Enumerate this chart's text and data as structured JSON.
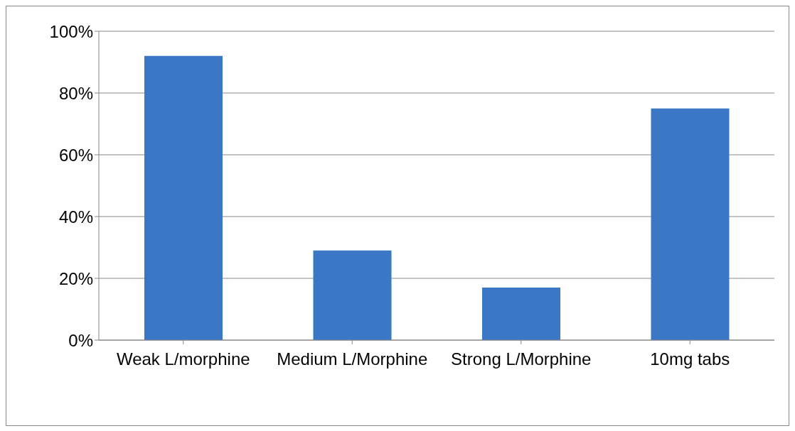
{
  "chart_data": {
    "type": "bar",
    "categories": [
      "Weak L/morphine",
      "Medium L/Morphine",
      "Strong L/Morphine",
      "10mg tabs"
    ],
    "values": [
      92,
      29,
      17,
      75
    ],
    "color": "#3a78c6",
    "ylim": [
      0,
      100
    ],
    "yticks": [
      {
        "value": 0,
        "label": "0%"
      },
      {
        "value": 20,
        "label": "20%"
      },
      {
        "value": 40,
        "label": "40%"
      },
      {
        "value": 60,
        "label": "60%"
      },
      {
        "value": 80,
        "label": "80%"
      },
      {
        "value": 100,
        "label": "100%"
      }
    ],
    "grid": "y",
    "legend": false
  }
}
